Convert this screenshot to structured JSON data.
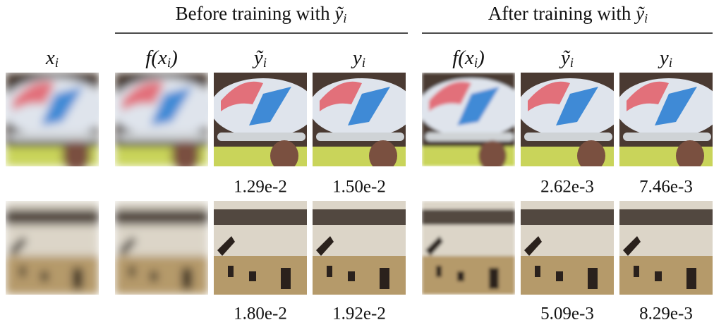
{
  "group_headers": [
    {
      "text": "Before training with ",
      "sym": "ỹ",
      "sub": "i"
    },
    {
      "text": "After training with ",
      "sym": "ỹ",
      "sub": "i"
    }
  ],
  "column_headers": [
    {
      "pre": "x",
      "sub": "i",
      "post": ")"
    },
    {
      "pre": "f(x",
      "sub": "i",
      "post": ")"
    },
    {
      "pre": "ỹ",
      "sub": "i",
      "post": ")"
    },
    {
      "pre": "y",
      "sub": "i",
      "post": ")"
    },
    {
      "pre": "f(x",
      "sub": "i",
      "post": ")"
    },
    {
      "pre": "ỹ",
      "sub": "i",
      "post": ")"
    },
    {
      "pre": "y",
      "sub": "i",
      "post": ")"
    }
  ],
  "rows": [
    {
      "values": [
        "1.29e-2",
        "1.50e-2",
        "2.62e-3",
        "7.46e-3"
      ]
    },
    {
      "values": [
        "1.80e-2",
        "1.92e-2",
        "5.09e-3",
        "8.29e-3"
      ]
    }
  ]
}
